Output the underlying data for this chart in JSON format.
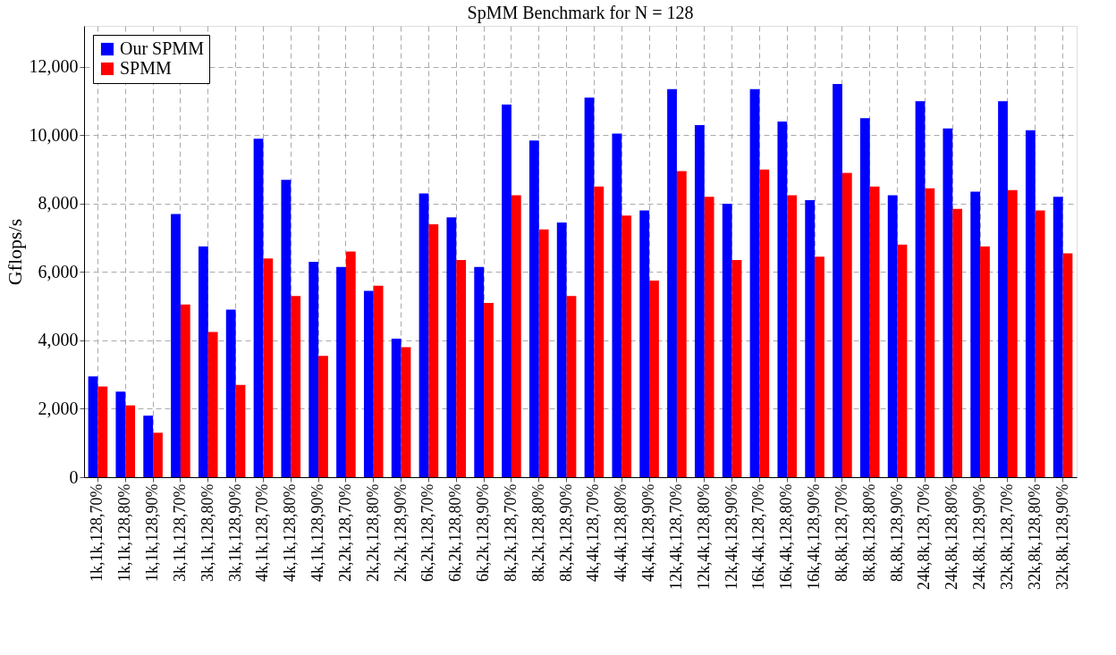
{
  "chart_data": {
    "type": "bar",
    "title": "SpMM Benchmark for N = 128",
    "ylabel": "Gflops/s",
    "categories": [
      "1k,1k,128,70%",
      "1k,1k,128,80%",
      "1k,1k,128,90%",
      "3k,1k,128,70%",
      "3k,1k,128,80%",
      "3k,1k,128,90%",
      "4k,1k,128,70%",
      "4k,1k,128,80%",
      "4k,1k,128,90%",
      "2k,2k,128,70%",
      "2k,2k,128,80%",
      "2k,2k,128,90%",
      "6k,2k,128,70%",
      "6k,2k,128,80%",
      "6k,2k,128,90%",
      "8k,2k,128,70%",
      "8k,2k,128,80%",
      "8k,2k,128,90%",
      "4k,4k,128,70%",
      "4k,4k,128,80%",
      "4k,4k,128,90%",
      "12k,4k,128,70%",
      "12k,4k,128,80%",
      "12k,4k,128,90%",
      "16k,4k,128,70%",
      "16k,4k,128,80%",
      "16k,4k,128,90%",
      "8k,8k,128,70%",
      "8k,8k,128,80%",
      "8k,8k,128,90%",
      "24k,8k,128,70%",
      "24k,8k,128,80%",
      "24k,8k,128,90%",
      "32k,8k,128,70%",
      "32k,8k,128,80%",
      "32k,8k,128,90%"
    ],
    "series": [
      {
        "name": "Our SPMM",
        "color": "#0000ff",
        "values": [
          2950,
          2500,
          1800,
          7700,
          6750,
          4900,
          9900,
          8700,
          6300,
          6150,
          5450,
          4050,
          8300,
          7600,
          6150,
          10900,
          9850,
          7450,
          11100,
          10050,
          7800,
          11350,
          10300,
          8000,
          11350,
          10400,
          8100,
          11500,
          10500,
          8250,
          11000,
          10200,
          8350,
          11000,
          10150,
          8200
        ]
      },
      {
        "name": "SPMM",
        "color": "#ff0000",
        "values": [
          2650,
          2100,
          1300,
          5050,
          4250,
          2700,
          6400,
          5300,
          3550,
          6600,
          5600,
          3800,
          7400,
          6350,
          5100,
          8250,
          7250,
          5300,
          8500,
          7650,
          5750,
          8950,
          8200,
          6350,
          9000,
          8250,
          6450,
          8900,
          8500,
          6800,
          8450,
          7850,
          6750,
          8400,
          7800,
          6550
        ]
      }
    ],
    "ylim": [
      0,
      13200
    ],
    "yticks": [
      {
        "value": 0,
        "label": "0"
      },
      {
        "value": 2000,
        "label": "2,000"
      },
      {
        "value": 4000,
        "label": "4,000"
      },
      {
        "value": 6000,
        "label": "6,000"
      },
      {
        "value": 8000,
        "label": "8,000"
      },
      {
        "value": 10000,
        "label": "10,000"
      },
      {
        "value": 12000,
        "label": "12,000"
      }
    ],
    "grid": true,
    "legend": "top left"
  }
}
